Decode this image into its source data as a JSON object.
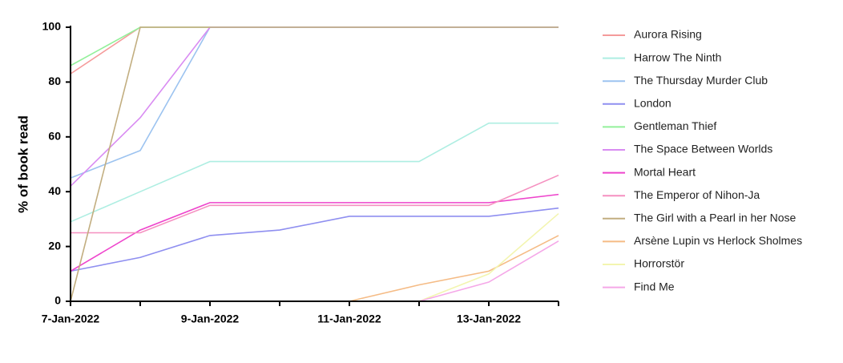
{
  "chart_data": {
    "type": "line",
    "y_label": "% of book read",
    "categories": [
      "7-Jan-2022",
      null,
      "9-Jan-2022",
      null,
      "11-Jan-2022",
      null,
      "13-Jan-2022",
      null
    ],
    "ylim": [
      0,
      100
    ],
    "yticks": [
      0,
      20,
      40,
      60,
      80,
      100
    ],
    "legend": "right",
    "series": [
      {
        "name": "Aurora Rising",
        "color": "#f59a9a",
        "values": [
          83,
          100,
          100,
          100,
          100,
          100,
          100,
          100
        ]
      },
      {
        "name": "Harrow The Ninth",
        "color": "#aeeee2",
        "values": [
          29,
          40,
          51,
          51,
          51,
          51,
          65,
          65
        ]
      },
      {
        "name": "The Thursday Murder Club",
        "color": "#9cc3f0",
        "values": [
          45,
          55,
          100,
          100,
          100,
          100,
          100,
          100
        ]
      },
      {
        "name": "London",
        "color": "#8f8ff0",
        "values": [
          11,
          16,
          24,
          26,
          31,
          31,
          31,
          34
        ]
      },
      {
        "name": "Gentleman Thief",
        "color": "#93f09a",
        "values": [
          86,
          100,
          100,
          100,
          100,
          100,
          100,
          100
        ]
      },
      {
        "name": "The Space Between Worlds",
        "color": "#d98cf2",
        "values": [
          42,
          67,
          100,
          100,
          100,
          100,
          100,
          100
        ]
      },
      {
        "name": "Mortal Heart",
        "color": "#ee44cc",
        "values": [
          11,
          26,
          36,
          36,
          36,
          36,
          36,
          39
        ]
      },
      {
        "name": "The Emperor of Nihon-Ja",
        "color": "#f590c0",
        "values": [
          25,
          25,
          35,
          35,
          35,
          35,
          35,
          46
        ]
      },
      {
        "name": "The Girl with a Pearl in her Nose",
        "color": "#c2ae80",
        "values": [
          0,
          100,
          100,
          100,
          100,
          100,
          100,
          100
        ]
      },
      {
        "name": "Arsène Lupin vs Herlock Sholmes",
        "color": "#f5bb85",
        "values": [
          0,
          0,
          0,
          0,
          0,
          6,
          11,
          24
        ]
      },
      {
        "name": "Horrorstör",
        "color": "#f3f5b0",
        "values": [
          0,
          0,
          0,
          0,
          0,
          0,
          10,
          32
        ]
      },
      {
        "name": "Find Me",
        "color": "#f5a8e8",
        "values": [
          0,
          0,
          0,
          0,
          0,
          0,
          7,
          22
        ]
      }
    ]
  }
}
